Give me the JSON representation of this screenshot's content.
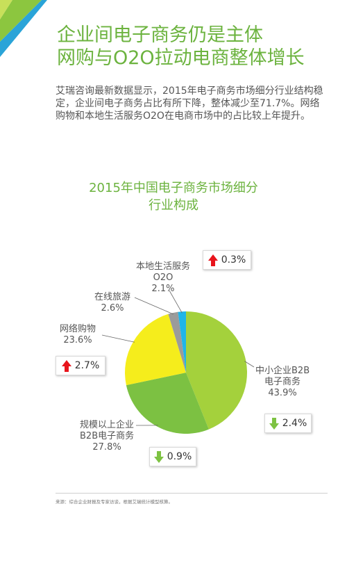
{
  "title": {
    "line1": "企业间电子商务仍是主体",
    "line2": "网购与O2O拉动电商整体增长"
  },
  "intro": "艾瑞咨询最新数据显示，2015年电子商务市场细分行业结构稳定，企业间电子商务占比有所下降，整体减少至71.7%。网络购物和本地生活服务O2O在电商市场中的占比较上年提升。",
  "colors": {
    "accent": "#6cb33f",
    "up": "#e8141c",
    "down": "#7dc242"
  },
  "chart_data": {
    "type": "pie",
    "title_lines": [
      "2015年中国电子商务市场细分",
      "行业构成"
    ],
    "slices": [
      {
        "label_lines": [
          "中小企业B2B",
          "电子商务"
        ],
        "value": 43.9,
        "value_label": "43.9%",
        "color": "#a4d13c",
        "change": {
          "direction": "down",
          "label": "2.4%"
        }
      },
      {
        "label_lines": [
          "规模以上企业",
          "B2B电子商务"
        ],
        "value": 27.8,
        "value_label": "27.8%",
        "color": "#7cc142",
        "change": {
          "direction": "down",
          "label": "0.9%"
        }
      },
      {
        "label_lines": [
          "网络购物"
        ],
        "value": 23.6,
        "value_label": "23.6%",
        "color": "#f5ed1c",
        "change": {
          "direction": "up",
          "label": "2.7%"
        }
      },
      {
        "label_lines": [
          "在线旅游"
        ],
        "value": 2.6,
        "value_label": "2.6%",
        "color": "#9b9b9b",
        "change": null
      },
      {
        "label_lines": [
          "本地生活服务",
          "O2O"
        ],
        "value": 2.1,
        "value_label": "2.1%",
        "color": "#1fb5e8",
        "change": {
          "direction": "up",
          "label": "0.3%"
        }
      }
    ]
  },
  "source": "来源：综合企业财报及专家访谈，根据艾瑞统计模型核算。"
}
